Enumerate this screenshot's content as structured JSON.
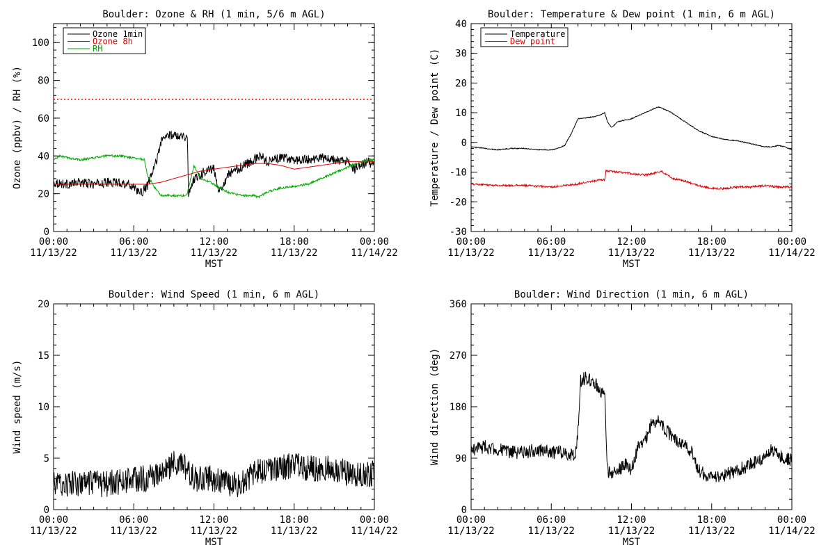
{
  "chart_data": [
    {
      "type": "line",
      "title": "Boulder: Ozone & RH (1 min, 5/6 m AGL)",
      "xlabel": "MST",
      "ylabel": "Ozone (ppbv) / RH (%)",
      "xlim": [
        "11/13/22 00:00",
        "11/14/22 00:00"
      ],
      "ylim": [
        0,
        110
      ],
      "yticks": [
        0,
        20,
        40,
        60,
        80,
        100
      ],
      "xticks": [
        {
          "time": "00:00",
          "date": "11/13/22"
        },
        {
          "time": "06:00",
          "date": "11/13/22"
        },
        {
          "time": "12:00",
          "date": "11/13/22"
        },
        {
          "time": "18:00",
          "date": "11/13/22"
        },
        {
          "time": "00:00",
          "date": "11/14/22"
        }
      ],
      "legend": {
        "placement": "top-left",
        "entries": [
          {
            "name": "Ozone 1min",
            "color": "#000000"
          },
          {
            "name": "Ozone 8h",
            "color": "#dd0000"
          },
          {
            "name": "RH",
            "color": "#00aa00"
          }
        ]
      },
      "reference_line": {
        "y": 70,
        "style": "dotted",
        "color": "#dd0000"
      },
      "series": [
        {
          "name": "Ozone 1min",
          "color": "#000000",
          "noise": 2.5,
          "x": [
            0,
            1,
            2,
            3,
            4,
            5,
            6,
            6.5,
            7,
            7.3,
            7.8,
            8,
            8.5,
            9,
            9.5,
            10,
            10.1,
            10.5,
            11,
            11.5,
            12,
            12.3,
            12.8,
            13,
            14,
            15,
            15.5,
            16,
            16.5,
            17,
            18,
            19,
            20,
            21,
            22,
            22.5,
            23,
            23.5,
            24
          ],
          "y": [
            26,
            25,
            26,
            25,
            26,
            26,
            24,
            20,
            24,
            29,
            40,
            47,
            51,
            51,
            51,
            50,
            20,
            28,
            30,
            33,
            33,
            22,
            26,
            30,
            34,
            38,
            40,
            37,
            38,
            39,
            38,
            38,
            39,
            38,
            37,
            33,
            35,
            37,
            35
          ]
        },
        {
          "name": "Ozone 8h",
          "color": "#dd0000",
          "noise": 0,
          "x": [
            0,
            3,
            6,
            7,
            8,
            9,
            10,
            11,
            12,
            13,
            14,
            15,
            16,
            17,
            18,
            19,
            20,
            21,
            22,
            23,
            24
          ],
          "y": [
            25,
            25,
            25,
            25,
            26,
            28,
            30,
            32,
            33,
            34,
            35,
            36,
            36,
            35,
            33,
            34,
            35,
            36,
            37,
            37,
            37
          ]
        },
        {
          "name": "RH",
          "color": "#00aa00",
          "noise": 0.6,
          "x": [
            0,
            0.5,
            1,
            2,
            3,
            4,
            5,
            6,
            6.8,
            7,
            7.5,
            8,
            9,
            9.8,
            10,
            10.5,
            11,
            11.5,
            12,
            13,
            14,
            15,
            15.3,
            16,
            17,
            18,
            19,
            20,
            21,
            22,
            23,
            24
          ],
          "y": [
            38,
            40,
            39,
            38,
            39,
            40,
            40,
            39,
            38,
            30,
            24,
            19,
            19,
            19,
            20,
            35,
            28,
            27,
            25,
            21,
            19,
            19,
            18,
            21,
            23,
            24,
            25,
            28,
            31,
            34,
            37,
            38
          ]
        }
      ]
    },
    {
      "type": "line",
      "title": "Boulder: Temperature & Dew point (1 min, 6 m AGL)",
      "xlabel": "MST",
      "ylabel": "Temperature / Dew point (C)",
      "xlim": [
        "11/13/22 00:00",
        "11/14/22 00:00"
      ],
      "ylim": [
        -30,
        40
      ],
      "yticks": [
        -30,
        -20,
        -10,
        0,
        10,
        20,
        30,
        40
      ],
      "xticks": [
        {
          "time": "00:00",
          "date": "11/13/22"
        },
        {
          "time": "06:00",
          "date": "11/13/22"
        },
        {
          "time": "12:00",
          "date": "11/13/22"
        },
        {
          "time": "18:00",
          "date": "11/13/22"
        },
        {
          "time": "00:00",
          "date": "11/14/22"
        }
      ],
      "legend": {
        "placement": "top-left",
        "entries": [
          {
            "name": "Temperature",
            "color": "#000000"
          },
          {
            "name": "Dew point",
            "color": "#dd0000"
          }
        ]
      },
      "series": [
        {
          "name": "Temperature",
          "color": "#000000",
          "noise": 0.15,
          "x": [
            0,
            1,
            2,
            3,
            4,
            5,
            6,
            6.5,
            7,
            7.5,
            8,
            9,
            9.5,
            10,
            10.2,
            10.5,
            11,
            12,
            13,
            14,
            14.3,
            15,
            16,
            17,
            18,
            19,
            20,
            21,
            22,
            22.5,
            23,
            23.5,
            24
          ],
          "y": [
            -1.5,
            -2,
            -2.5,
            -2,
            -2,
            -2.5,
            -2.5,
            -2,
            -1,
            3,
            8,
            8.5,
            9,
            10,
            7,
            5,
            7,
            8,
            10,
            12,
            11.5,
            10,
            7,
            4,
            2,
            1,
            0.5,
            -0.5,
            -1.5,
            -1.5,
            -1,
            -1.5,
            -2.5
          ]
        },
        {
          "name": "Dew point",
          "color": "#dd0000",
          "noise": 0.35,
          "x": [
            0,
            2,
            4,
            6,
            7,
            8,
            9,
            10,
            10.1,
            11,
            12,
            13,
            14,
            14.3,
            15,
            16,
            17,
            18,
            19,
            20,
            21,
            22,
            23,
            24
          ],
          "y": [
            -14,
            -14.5,
            -14.5,
            -15,
            -14.5,
            -14,
            -13,
            -12.5,
            -9.5,
            -10,
            -10.5,
            -11,
            -10,
            -9.8,
            -12,
            -13,
            -14.5,
            -15.5,
            -15.5,
            -15,
            -15,
            -14.5,
            -15,
            -15
          ]
        }
      ]
    },
    {
      "type": "line",
      "title": "Boulder: Wind Speed (1 min, 6 m AGL)",
      "xlabel": "MST",
      "ylabel": "Wind speed (m/s)",
      "xlim": [
        "11/13/22 00:00",
        "11/14/22 00:00"
      ],
      "ylim": [
        0,
        20
      ],
      "yticks": [
        0,
        5,
        10,
        15,
        20
      ],
      "xticks": [
        {
          "time": "00:00",
          "date": "11/13/22"
        },
        {
          "time": "06:00",
          "date": "11/13/22"
        },
        {
          "time": "12:00",
          "date": "11/13/22"
        },
        {
          "time": "18:00",
          "date": "11/13/22"
        },
        {
          "time": "00:00",
          "date": "11/14/22"
        }
      ],
      "series": [
        {
          "color": "#000000",
          "noise": 1.3,
          "x": [
            0,
            2,
            4,
            6,
            7,
            8,
            9,
            10,
            10.5,
            11,
            12,
            13,
            14,
            15,
            16,
            17,
            18,
            19,
            20,
            21,
            22,
            23,
            24
          ],
          "y": [
            2.5,
            2.5,
            2.5,
            3,
            3,
            3.5,
            4.5,
            4,
            3,
            3,
            3,
            2.5,
            2.5,
            3.5,
            4,
            4,
            4.5,
            4,
            4,
            4,
            3.5,
            3.5,
            3.5
          ]
        }
      ]
    },
    {
      "type": "line",
      "title": "Boulder: Wind Direction (1 min, 6 m AGL)",
      "xlabel": "MST",
      "ylabel": "Wind direction (deg)",
      "xlim": [
        "11/13/22 00:00",
        "11/14/22 00:00"
      ],
      "ylim": [
        0,
        360
      ],
      "yticks": [
        0,
        90,
        180,
        270,
        360
      ],
      "xticks": [
        {
          "time": "00:00",
          "date": "11/13/22"
        },
        {
          "time": "06:00",
          "date": "11/13/22"
        },
        {
          "time": "12:00",
          "date": "11/13/22"
        },
        {
          "time": "18:00",
          "date": "11/13/22"
        },
        {
          "time": "00:00",
          "date": "11/14/22"
        }
      ],
      "series": [
        {
          "color": "#000000",
          "noise": 12,
          "x": [
            0,
            1,
            2,
            3,
            4,
            5,
            6,
            7,
            7.8,
            8,
            8.2,
            8.5,
            9,
            9.5,
            10,
            10.2,
            10.5,
            11,
            11.5,
            12,
            12.5,
            13,
            13.5,
            14,
            14.5,
            15,
            15.5,
            16,
            16.5,
            17,
            17.5,
            18,
            19,
            20,
            21,
            22,
            22.5,
            23,
            24
          ],
          "y": [
            105,
            110,
            105,
            100,
            100,
            105,
            100,
            100,
            95,
            140,
            225,
            230,
            225,
            215,
            200,
            70,
            60,
            70,
            80,
            70,
            110,
            120,
            150,
            160,
            140,
            130,
            120,
            115,
            100,
            70,
            60,
            55,
            60,
            70,
            80,
            90,
            105,
            95,
            85
          ]
        }
      ]
    }
  ]
}
